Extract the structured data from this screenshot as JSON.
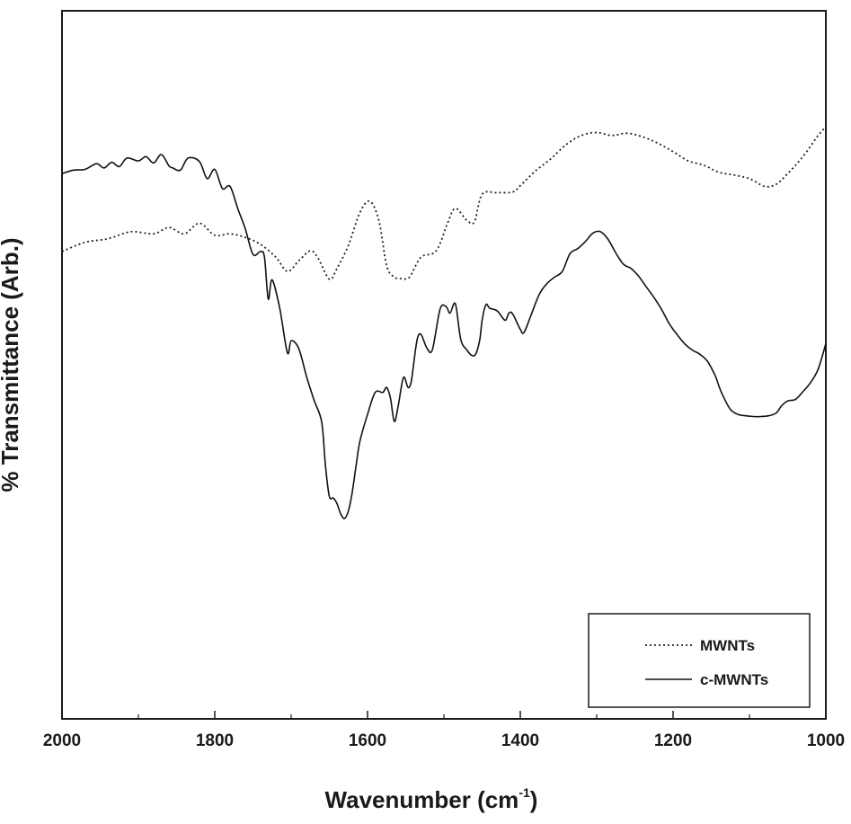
{
  "chart_data": {
    "type": "line",
    "title": "",
    "xlabel": "Wavenumber (cm",
    "xlabel_sup": "-1",
    "xlabel_close": ")",
    "ylabel": "% Transmittance (Arb.)",
    "xlim": [
      2000,
      1000
    ],
    "x_reversed": true,
    "ylim": [
      0,
      100
    ],
    "xticks": [
      2000,
      1800,
      1600,
      1400,
      1200,
      1000
    ],
    "xtick_labels": [
      "2000",
      "1800",
      "1600",
      "1400",
      "1200",
      "1000"
    ],
    "grid": false,
    "legend_position": "bottom-right",
    "series": [
      {
        "name": "MWNTs",
        "style": "dotted",
        "color": "#222222",
        "x": [
          2000,
          1970,
          1940,
          1910,
          1880,
          1860,
          1840,
          1820,
          1800,
          1780,
          1760,
          1740,
          1720,
          1705,
          1690,
          1675,
          1665,
          1650,
          1640,
          1625,
          1610,
          1597,
          1585,
          1575,
          1565,
          1555,
          1545,
          1530,
          1510,
          1495,
          1485,
          1470,
          1460,
          1450,
          1430,
          1410,
          1400,
          1380,
          1360,
          1340,
          1320,
          1300,
          1280,
          1260,
          1240,
          1220,
          1200,
          1180,
          1160,
          1140,
          1120,
          1100,
          1080,
          1065,
          1050,
          1030,
          1010,
          1000
        ],
        "y": [
          66.0,
          67.3,
          67.8,
          68.8,
          68.5,
          69.4,
          68.5,
          70.0,
          68.3,
          68.5,
          68.0,
          67.0,
          65.2,
          63.2,
          64.7,
          66.1,
          65.1,
          62.1,
          63.6,
          66.9,
          71.5,
          73.1,
          70.3,
          64.0,
          62.4,
          62.2,
          62.4,
          65.2,
          66.1,
          70.1,
          72.1,
          70.4,
          70.2,
          74.1,
          74.3,
          74.4,
          75.3,
          77.4,
          79.1,
          81.1,
          82.4,
          82.8,
          82.4,
          82.7,
          82.2,
          81.3,
          80.1,
          78.8,
          78.2,
          77.2,
          76.8,
          76.3,
          75.2,
          75.5,
          77.0,
          79.4,
          82.4,
          83.6
        ]
      },
      {
        "name": "c-MWNTs",
        "style": "solid",
        "color": "#111111",
        "x": [
          2000,
          1985,
          1970,
          1955,
          1945,
          1935,
          1925,
          1915,
          1900,
          1890,
          1880,
          1870,
          1860,
          1855,
          1845,
          1835,
          1820,
          1810,
          1800,
          1790,
          1780,
          1770,
          1760,
          1750,
          1740,
          1735,
          1730,
          1725,
          1715,
          1705,
          1700,
          1690,
          1680,
          1670,
          1660,
          1655,
          1650,
          1645,
          1640,
          1635,
          1630,
          1625,
          1620,
          1615,
          1610,
          1600,
          1590,
          1580,
          1575,
          1570,
          1565,
          1560,
          1553,
          1547,
          1543,
          1540,
          1535,
          1530,
          1522,
          1515,
          1505,
          1497,
          1492,
          1485,
          1478,
          1470,
          1463,
          1458,
          1453,
          1450,
          1445,
          1440,
          1430,
          1420,
          1415,
          1410,
          1400,
          1395,
          1385,
          1375,
          1365,
          1355,
          1345,
          1335,
          1325,
          1315,
          1305,
          1295,
          1285,
          1275,
          1265,
          1255,
          1245,
          1235,
          1225,
          1215,
          1205,
          1195,
          1185,
          1175,
          1165,
          1155,
          1145,
          1140,
          1135,
          1125,
          1115,
          1105,
          1095,
          1085,
          1075,
          1065,
          1058,
          1050,
          1040,
          1030,
          1020,
          1010,
          1000
        ],
        "y": [
          77.0,
          77.5,
          77.6,
          78.4,
          77.8,
          78.6,
          78.0,
          79.2,
          78.8,
          79.4,
          78.5,
          79.7,
          78.1,
          77.8,
          77.5,
          79.2,
          78.7,
          76.3,
          77.6,
          74.9,
          75.2,
          72.1,
          69.2,
          65.6,
          66.0,
          65.2,
          59.3,
          62.0,
          58.0,
          51.7,
          53.4,
          52.3,
          48.4,
          45.0,
          41.9,
          35.6,
          31.4,
          31.2,
          30.4,
          28.9,
          28.3,
          29.4,
          32.0,
          35.8,
          39.2,
          43.0,
          46.1,
          46.1,
          46.8,
          45.3,
          42.0,
          44.1,
          48.2,
          46.8,
          47.5,
          49.8,
          53.6,
          54.3,
          52.3,
          52.2,
          57.9,
          58.2,
          57.3,
          58.6,
          53.6,
          52.1,
          51.3,
          51.6,
          53.6,
          56.3,
          58.5,
          58.0,
          57.6,
          56.3,
          57.3,
          57.2,
          55.0,
          54.6,
          57.3,
          60.0,
          61.5,
          62.4,
          63.2,
          65.7,
          66.4,
          67.4,
          68.6,
          68.8,
          67.7,
          65.8,
          64.2,
          63.6,
          62.5,
          61.0,
          59.5,
          57.8,
          55.8,
          54.3,
          53.0,
          52.1,
          51.5,
          50.5,
          48.5,
          47.0,
          45.7,
          43.7,
          43.0,
          42.8,
          42.7,
          42.7,
          42.8,
          43.2,
          44.2,
          44.9,
          45.1,
          46.2,
          47.5,
          49.4,
          53.0
        ]
      }
    ]
  }
}
